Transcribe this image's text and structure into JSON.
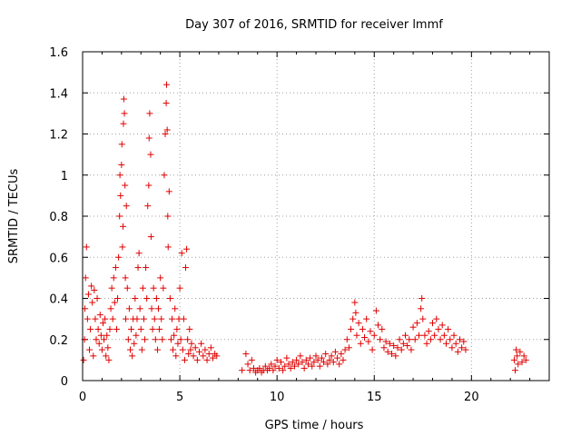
{
  "chart_data": {
    "type": "scatter",
    "title": "Day 307 of 2016, SRMTID for receiver lmmf",
    "xlabel": "GPS time / hours",
    "ylabel": "SRMTID / TECUs",
    "xlim": [
      0,
      24
    ],
    "ylim": [
      0,
      1.6
    ],
    "x_ticks": [
      0,
      5,
      10,
      15,
      20
    ],
    "x_tick_labels": [
      "0",
      "5",
      "10",
      "15",
      "20"
    ],
    "y_ticks": [
      0,
      0.2,
      0.4,
      0.6,
      0.8,
      1,
      1.2,
      1.4,
      1.6
    ],
    "y_tick_labels": [
      "0",
      "0.2",
      "0.4",
      "0.6",
      "0.8",
      "1",
      "1.2",
      "1.4",
      "1.6"
    ],
    "grid": true,
    "marker": "+",
    "marker_color": "#e00000",
    "series": [
      {
        "name": "SRMTID",
        "points": [
          [
            0.05,
            0.1
          ],
          [
            0.1,
            0.2
          ],
          [
            0.12,
            0.35
          ],
          [
            0.15,
            0.5
          ],
          [
            0.2,
            0.65
          ],
          [
            0.25,
            0.3
          ],
          [
            0.3,
            0.42
          ],
          [
            0.35,
            0.15
          ],
          [
            0.4,
            0.25
          ],
          [
            0.45,
            0.46
          ],
          [
            0.5,
            0.38
          ],
          [
            0.55,
            0.12
          ],
          [
            0.6,
            0.44
          ],
          [
            0.65,
            0.3
          ],
          [
            0.7,
            0.2
          ],
          [
            0.75,
            0.4
          ],
          [
            0.8,
            0.25
          ],
          [
            0.85,
            0.18
          ],
          [
            0.9,
            0.32
          ],
          [
            0.95,
            0.22
          ],
          [
            1.0,
            0.15
          ],
          [
            1.05,
            0.28
          ],
          [
            1.1,
            0.2
          ],
          [
            1.15,
            0.3
          ],
          [
            1.2,
            0.12
          ],
          [
            1.25,
            0.22
          ],
          [
            1.3,
            0.16
          ],
          [
            1.35,
            0.1
          ],
          [
            1.4,
            0.25
          ],
          [
            1.45,
            0.35
          ],
          [
            1.5,
            0.45
          ],
          [
            1.55,
            0.3
          ],
          [
            1.6,
            0.5
          ],
          [
            1.65,
            0.38
          ],
          [
            1.7,
            0.55
          ],
          [
            1.75,
            0.25
          ],
          [
            1.8,
            0.4
          ],
          [
            1.85,
            0.6
          ],
          [
            1.9,
            0.8
          ],
          [
            1.92,
            1.0
          ],
          [
            1.95,
            0.9
          ],
          [
            2.0,
            1.05
          ],
          [
            2.02,
            1.15
          ],
          [
            2.05,
            0.65
          ],
          [
            2.08,
            0.75
          ],
          [
            2.1,
            1.25
          ],
          [
            2.12,
            1.37
          ],
          [
            2.15,
            1.3
          ],
          [
            2.18,
            0.95
          ],
          [
            2.2,
            0.5
          ],
          [
            2.22,
            0.3
          ],
          [
            2.25,
            0.85
          ],
          [
            2.3,
            0.45
          ],
          [
            2.35,
            0.2
          ],
          [
            2.4,
            0.35
          ],
          [
            2.45,
            0.15
          ],
          [
            2.5,
            0.25
          ],
          [
            2.55,
            0.12
          ],
          [
            2.6,
            0.3
          ],
          [
            2.65,
            0.18
          ],
          [
            2.7,
            0.4
          ],
          [
            2.75,
            0.22
          ],
          [
            2.8,
            0.3
          ],
          [
            2.85,
            0.55
          ],
          [
            2.9,
            0.62
          ],
          [
            2.95,
            0.35
          ],
          [
            3.0,
            0.25
          ],
          [
            3.05,
            0.15
          ],
          [
            3.1,
            0.45
          ],
          [
            3.15,
            0.3
          ],
          [
            3.2,
            0.2
          ],
          [
            3.25,
            0.55
          ],
          [
            3.3,
            0.4
          ],
          [
            3.35,
            0.85
          ],
          [
            3.4,
            0.95
          ],
          [
            3.42,
            1.18
          ],
          [
            3.45,
            1.3
          ],
          [
            3.5,
            1.1
          ],
          [
            3.52,
            0.7
          ],
          [
            3.55,
            0.35
          ],
          [
            3.6,
            0.25
          ],
          [
            3.65,
            0.45
          ],
          [
            3.7,
            0.3
          ],
          [
            3.75,
            0.2
          ],
          [
            3.8,
            0.4
          ],
          [
            3.85,
            0.15
          ],
          [
            3.9,
            0.35
          ],
          [
            3.95,
            0.25
          ],
          [
            4.0,
            0.5
          ],
          [
            4.05,
            0.3
          ],
          [
            4.1,
            0.2
          ],
          [
            4.15,
            0.45
          ],
          [
            4.2,
            1.0
          ],
          [
            4.25,
            1.2
          ],
          [
            4.3,
            1.35
          ],
          [
            4.32,
            1.44
          ],
          [
            4.35,
            1.22
          ],
          [
            4.38,
            0.8
          ],
          [
            4.4,
            0.65
          ],
          [
            4.45,
            0.92
          ],
          [
            4.5,
            0.4
          ],
          [
            4.55,
            0.2
          ],
          [
            4.6,
            0.3
          ],
          [
            4.65,
            0.15
          ],
          [
            4.7,
            0.22
          ],
          [
            4.75,
            0.35
          ],
          [
            4.8,
            0.12
          ],
          [
            4.85,
            0.25
          ],
          [
            4.9,
            0.18
          ],
          [
            4.95,
            0.3
          ],
          [
            5.0,
            0.45
          ],
          [
            5.05,
            0.2
          ],
          [
            5.1,
            0.62
          ],
          [
            5.15,
            0.15
          ],
          [
            5.2,
            0.3
          ],
          [
            5.25,
            0.1
          ],
          [
            5.3,
            0.55
          ],
          [
            5.35,
            0.64
          ],
          [
            5.4,
            0.2
          ],
          [
            5.45,
            0.13
          ],
          [
            5.5,
            0.25
          ],
          [
            5.55,
            0.15
          ],
          [
            5.6,
            0.18
          ],
          [
            5.7,
            0.12
          ],
          [
            5.8,
            0.16
          ],
          [
            5.9,
            0.1
          ],
          [
            6.0,
            0.14
          ],
          [
            6.1,
            0.18
          ],
          [
            6.2,
            0.12
          ],
          [
            6.3,
            0.15
          ],
          [
            6.4,
            0.1
          ],
          [
            6.5,
            0.13
          ],
          [
            6.6,
            0.16
          ],
          [
            6.7,
            0.11
          ],
          [
            6.8,
            0.13
          ],
          [
            6.9,
            0.12
          ],
          [
            8.2,
            0.05
          ],
          [
            8.4,
            0.13
          ],
          [
            8.5,
            0.08
          ],
          [
            8.6,
            0.05
          ],
          [
            8.7,
            0.1
          ],
          [
            8.8,
            0.06
          ],
          [
            8.9,
            0.04
          ],
          [
            9.0,
            0.05
          ],
          [
            9.1,
            0.06
          ],
          [
            9.2,
            0.04
          ],
          [
            9.3,
            0.05
          ],
          [
            9.4,
            0.07
          ],
          [
            9.5,
            0.05
          ],
          [
            9.6,
            0.06
          ],
          [
            9.7,
            0.08
          ],
          [
            9.8,
            0.05
          ],
          [
            9.9,
            0.07
          ],
          [
            10.0,
            0.1
          ],
          [
            10.1,
            0.06
          ],
          [
            10.2,
            0.09
          ],
          [
            10.3,
            0.05
          ],
          [
            10.4,
            0.07
          ],
          [
            10.5,
            0.11
          ],
          [
            10.6,
            0.08
          ],
          [
            10.7,
            0.06
          ],
          [
            10.8,
            0.09
          ],
          [
            10.9,
            0.07
          ],
          [
            11.0,
            0.1
          ],
          [
            11.1,
            0.08
          ],
          [
            11.2,
            0.12
          ],
          [
            11.3,
            0.09
          ],
          [
            11.4,
            0.06
          ],
          [
            11.5,
            0.1
          ],
          [
            11.6,
            0.08
          ],
          [
            11.7,
            0.11
          ],
          [
            11.8,
            0.07
          ],
          [
            11.9,
            0.09
          ],
          [
            12.0,
            0.12
          ],
          [
            12.1,
            0.1
          ],
          [
            12.2,
            0.07
          ],
          [
            12.3,
            0.11
          ],
          [
            12.4,
            0.09
          ],
          [
            12.5,
            0.13
          ],
          [
            12.6,
            0.08
          ],
          [
            12.7,
            0.1
          ],
          [
            12.8,
            0.12
          ],
          [
            12.9,
            0.09
          ],
          [
            13.0,
            0.14
          ],
          [
            13.1,
            0.11
          ],
          [
            13.2,
            0.08
          ],
          [
            13.3,
            0.13
          ],
          [
            13.4,
            0.1
          ],
          [
            13.5,
            0.15
          ],
          [
            13.6,
            0.2
          ],
          [
            13.7,
            0.16
          ],
          [
            13.8,
            0.25
          ],
          [
            13.9,
            0.3
          ],
          [
            14.0,
            0.38
          ],
          [
            14.05,
            0.33
          ],
          [
            14.1,
            0.22
          ],
          [
            14.2,
            0.28
          ],
          [
            14.3,
            0.18
          ],
          [
            14.4,
            0.25
          ],
          [
            14.5,
            0.21
          ],
          [
            14.6,
            0.3
          ],
          [
            14.7,
            0.19
          ],
          [
            14.8,
            0.24
          ],
          [
            14.9,
            0.15
          ],
          [
            15.0,
            0.22
          ],
          [
            15.1,
            0.34
          ],
          [
            15.2,
            0.27
          ],
          [
            15.3,
            0.2
          ],
          [
            15.4,
            0.25
          ],
          [
            15.5,
            0.16
          ],
          [
            15.6,
            0.19
          ],
          [
            15.7,
            0.14
          ],
          [
            15.8,
            0.18
          ],
          [
            15.9,
            0.13
          ],
          [
            16.0,
            0.17
          ],
          [
            16.1,
            0.12
          ],
          [
            16.2,
            0.16
          ],
          [
            16.3,
            0.2
          ],
          [
            16.4,
            0.15
          ],
          [
            16.5,
            0.18
          ],
          [
            16.6,
            0.22
          ],
          [
            16.7,
            0.17
          ],
          [
            16.8,
            0.2
          ],
          [
            16.9,
            0.15
          ],
          [
            17.0,
            0.26
          ],
          [
            17.1,
            0.2
          ],
          [
            17.2,
            0.28
          ],
          [
            17.3,
            0.22
          ],
          [
            17.4,
            0.35
          ],
          [
            17.45,
            0.4
          ],
          [
            17.5,
            0.3
          ],
          [
            17.6,
            0.22
          ],
          [
            17.7,
            0.18
          ],
          [
            17.8,
            0.24
          ],
          [
            17.9,
            0.2
          ],
          [
            18.0,
            0.28
          ],
          [
            18.1,
            0.22
          ],
          [
            18.2,
            0.3
          ],
          [
            18.3,
            0.25
          ],
          [
            18.4,
            0.2
          ],
          [
            18.5,
            0.27
          ],
          [
            18.6,
            0.22
          ],
          [
            18.7,
            0.18
          ],
          [
            18.8,
            0.25
          ],
          [
            18.9,
            0.2
          ],
          [
            19.0,
            0.16
          ],
          [
            19.1,
            0.22
          ],
          [
            19.2,
            0.18
          ],
          [
            19.3,
            0.14
          ],
          [
            19.4,
            0.2
          ],
          [
            19.5,
            0.16
          ],
          [
            19.6,
            0.19
          ],
          [
            19.7,
            0.15
          ],
          [
            22.2,
            0.1
          ],
          [
            22.25,
            0.05
          ],
          [
            22.3,
            0.15
          ],
          [
            22.35,
            0.12
          ],
          [
            22.4,
            0.08
          ],
          [
            22.5,
            0.14
          ],
          [
            22.6,
            0.09
          ],
          [
            22.7,
            0.12
          ],
          [
            22.8,
            0.1
          ]
        ]
      }
    ]
  }
}
